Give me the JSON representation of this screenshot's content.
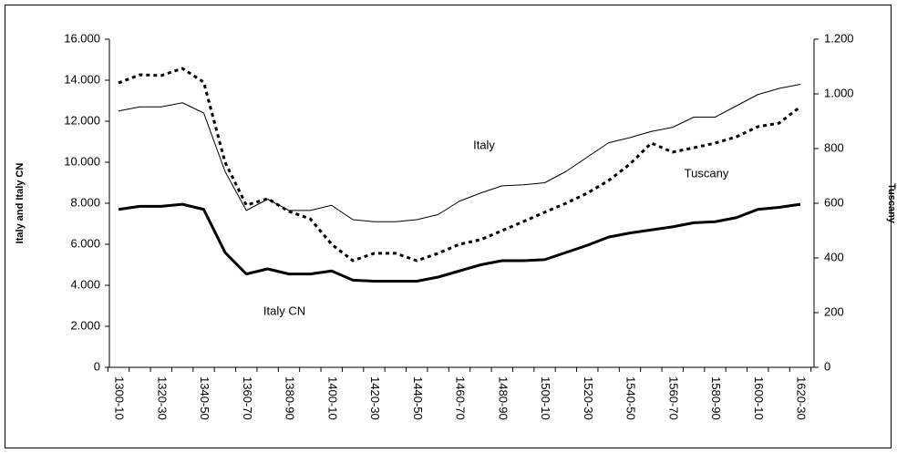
{
  "chart_data": {
    "type": "line",
    "y_label": "Italy and Italy CN",
    "y2_label": "Tuscany",
    "categories": [
      "1300-10",
      null,
      "1320-30",
      null,
      "1340-50",
      null,
      "1360-70",
      null,
      "1380-90",
      null,
      "1400-10",
      null,
      "1420-30",
      null,
      "1440-50",
      null,
      "1460-70",
      null,
      "1480-90",
      null,
      "1500-10",
      null,
      "1520-30",
      null,
      "1540-50",
      null,
      "1560-70",
      null,
      "1580-90",
      null,
      "1600-10",
      null,
      "1620-30"
    ],
    "ylim": [
      0,
      16000
    ],
    "yticks": [
      0,
      {
        "value": 2000,
        "label": "2.000"
      },
      {
        "value": 4000,
        "label": "4.000"
      },
      {
        "value": 6000,
        "label": "6.000"
      },
      {
        "value": 8000,
        "label": "8.000"
      },
      {
        "value": 10000,
        "label": "10.000"
      },
      {
        "value": 12000,
        "label": "12.000"
      },
      {
        "value": 14000,
        "label": "14.000"
      },
      {
        "value": 16000,
        "label": "16.000"
      }
    ],
    "y2lim": [
      0,
      1200
    ],
    "y2ticks": [
      0,
      200,
      400,
      600,
      800,
      {
        "value": 1000,
        "label": "1.000"
      },
      {
        "value": 1200,
        "label": "1.200"
      }
    ],
    "series": [
      {
        "name": "Italy",
        "color": "#000000",
        "values": [
          12500,
          12700,
          12700,
          12900,
          12400,
          9550,
          7650,
          8200,
          7650,
          7650,
          7900,
          7200,
          7100,
          7100,
          7200,
          7450,
          8100,
          8500,
          8850,
          8900,
          9000,
          9550,
          10250,
          10950,
          11200,
          11500,
          11700,
          12200,
          12200,
          12750,
          13300,
          13600,
          13800
        ]
      },
      {
        "name": "Italy CN",
        "color": "#000000",
        "values": [
          7700,
          7850,
          7850,
          7950,
          7700,
          5600,
          4550,
          4800,
          4550,
          4550,
          4700,
          4250,
          4200,
          4200,
          4200,
          4400,
          4700,
          5000,
          5200,
          5200,
          5250,
          5600,
          5950,
          6350,
          6550,
          6700,
          6850,
          7050,
          7100,
          7300,
          7700,
          7800,
          7950
        ]
      },
      {
        "name": "Tuscany",
        "color": "#000000",
        "axis": "y2",
        "values": [
          1040,
          1070,
          1067,
          1093,
          1043,
          750,
          593,
          617,
          570,
          543,
          450,
          390,
          417,
          417,
          390,
          417,
          450,
          467,
          500,
          533,
          567,
          600,
          637,
          683,
          743,
          820,
          787,
          803,
          820,
          843,
          880,
          893,
          953
        ]
      }
    ]
  }
}
